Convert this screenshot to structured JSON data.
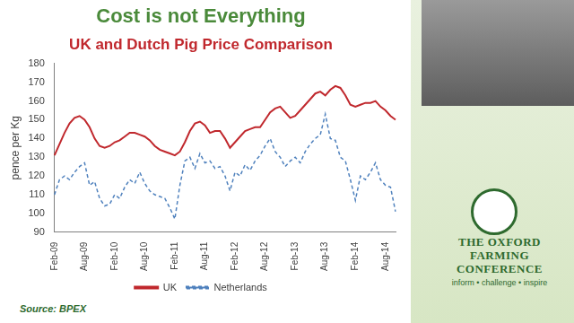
{
  "chart_data": {
    "type": "line",
    "title": "Cost is not Everything",
    "subtitle": "UK and Dutch Pig Price Comparison",
    "y_label": "pence per Kg",
    "annotations": [
      "Source: BPEX",
      "THE OXFORD FARMING CONFERENCE",
      "inform • challenge • inspire"
    ],
    "categories": [
      "Feb-09",
      null,
      null,
      null,
      null,
      null,
      "Aug-09",
      null,
      null,
      null,
      null,
      null,
      "Feb-10",
      null,
      null,
      null,
      null,
      null,
      "Aug-10",
      null,
      null,
      null,
      null,
      null,
      "Feb-11",
      null,
      null,
      null,
      null,
      null,
      "Aug-11",
      null,
      null,
      null,
      null,
      null,
      "Feb-12",
      null,
      null,
      null,
      null,
      null,
      "Aug-12",
      null,
      null,
      null,
      null,
      null,
      "Feb-13",
      null,
      null,
      null,
      null,
      null,
      "Aug-13",
      null,
      null,
      null,
      null,
      null,
      "Feb-14",
      null,
      null,
      null,
      null,
      null,
      "Aug-14",
      null,
      null
    ],
    "series": [
      {
        "name": "UK",
        "color": "#c0282d",
        "line_style": "solid",
        "values": [
          131,
          137,
          143,
          148,
          151,
          152,
          150,
          146,
          140,
          136,
          135,
          136,
          138,
          139,
          141,
          143,
          143,
          142,
          141,
          139,
          136,
          134,
          133,
          132,
          131,
          133,
          138,
          144,
          148,
          149,
          147,
          143,
          144,
          144,
          140,
          135,
          138,
          141,
          144,
          145,
          146,
          146,
          150,
          154,
          156,
          157,
          154,
          151,
          152,
          155,
          158,
          161,
          164,
          165,
          163,
          166,
          168,
          167,
          163,
          158,
          157,
          158,
          159,
          159,
          160,
          157,
          155,
          152,
          150
        ]
      },
      {
        "name": "Netherlands",
        "color": "#4f81bd",
        "line_style": "dashed",
        "values": [
          110,
          118,
          120,
          118,
          122,
          125,
          127,
          115,
          117,
          108,
          104,
          105,
          110,
          108,
          114,
          118,
          116,
          122,
          116,
          112,
          110,
          109,
          108,
          103,
          97,
          115,
          128,
          130,
          124,
          132,
          127,
          128,
          124,
          125,
          120,
          112,
          122,
          120,
          126,
          123,
          128,
          131,
          136,
          140,
          133,
          130,
          125,
          128,
          130,
          127,
          133,
          137,
          140,
          142,
          153,
          140,
          139,
          130,
          128,
          118,
          107,
          120,
          118,
          122,
          127,
          118,
          115,
          114,
          101
        ]
      }
    ],
    "ylim": [
      90,
      180
    ],
    "yticks": [
      90,
      100,
      110,
      120,
      130,
      140,
      150,
      160,
      170,
      180
    ],
    "grid": false,
    "legend": "bottom"
  }
}
